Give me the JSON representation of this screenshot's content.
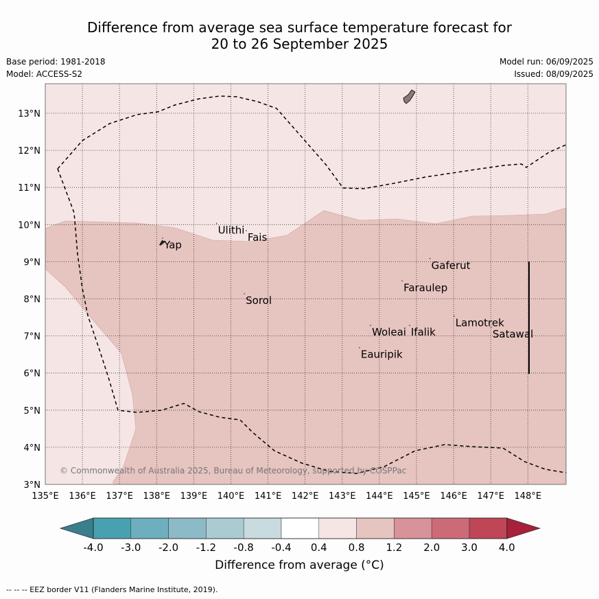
{
  "title_line1": "Difference from average sea surface temperature forecast for",
  "title_line2": "20 to 26 September 2025",
  "base_period": "Base period: 1981-2018",
  "model": "Model: ACCESS-S2",
  "model_run": "Model run: 06/09/2025",
  "issued": "Issued: 08/09/2025",
  "copyright": "© Commonwealth of Australia 2025, Bureau of Meteorology, supported by COSPPac",
  "footer": "--  --  -- EEZ border V11 (Flanders Marine Institute, 2019).",
  "lon_ticks": [
    "135°E",
    "136°E",
    "137°E",
    "138°E",
    "139°E",
    "140°E",
    "141°E",
    "142°E",
    "143°E",
    "144°E",
    "145°E",
    "146°E",
    "147°E",
    "148°E"
  ],
  "lat_ticks": [
    "3°N",
    "4°N",
    "5°N",
    "6°N",
    "7°N",
    "8°N",
    "9°N",
    "10°N",
    "11°N",
    "12°N",
    "13°N"
  ],
  "places": [
    {
      "name": "Ulithi",
      "lon": 139.65,
      "lat": 9.85
    },
    {
      "name": "Fais",
      "lon": 140.45,
      "lat": 9.65
    },
    {
      "name": "Yap",
      "lon": 138.2,
      "lat": 9.45
    },
    {
      "name": "Gaferut",
      "lon": 145.4,
      "lat": 8.9
    },
    {
      "name": "Faraulep",
      "lon": 144.65,
      "lat": 8.3
    },
    {
      "name": "Sorol",
      "lon": 140.4,
      "lat": 7.95
    },
    {
      "name": "Woleai",
      "lon": 143.8,
      "lat": 7.1
    },
    {
      "name": "Ifalik",
      "lon": 144.85,
      "lat": 7.1
    },
    {
      "name": "Lamotrek",
      "lon": 146.05,
      "lat": 7.35
    },
    {
      "name": "Satawal",
      "lon": 147.05,
      "lat": 7.05
    },
    {
      "name": "Eauripik",
      "lon": 143.5,
      "lat": 6.5
    }
  ],
  "colorbar": {
    "labels": [
      "-4.0",
      "-3.0",
      "-2.0",
      "-1.2",
      "-0.8",
      "-0.4",
      "0.4",
      "0.8",
      "1.2",
      "2.0",
      "3.0",
      "4.0"
    ],
    "colors": [
      "#3a7f8c",
      "#48a1b1",
      "#6dafbe",
      "#8cbac7",
      "#abcbd3",
      "#c8dbdf",
      "#ffffff",
      "#f5e6e5",
      "#e6c4c0",
      "#d8929a",
      "#cc6b77",
      "#bf4656",
      "#a8203a"
    ],
    "title": "Difference from average (°C)"
  },
  "shading": {
    "band_0.4_0.8": "#f5e6e5",
    "band_0.8_1.2": "#e6c4c0"
  }
}
